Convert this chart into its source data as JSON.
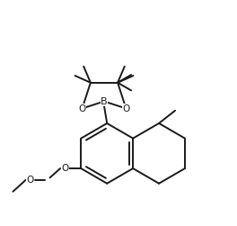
{
  "background_color": "#ffffff",
  "line_color": "#1a1a1a",
  "line_width": 1.4,
  "font_size": 7.5
}
